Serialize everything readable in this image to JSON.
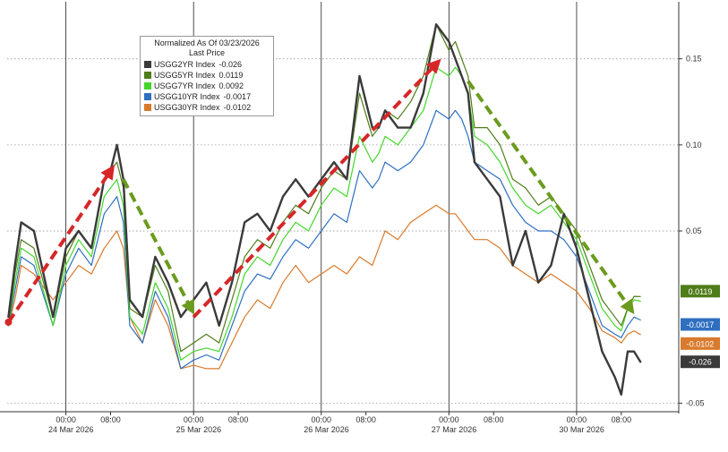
{
  "chart_data": {
    "type": "line",
    "ylim": [
      -0.055,
      0.18
    ],
    "yticks": [
      -0.05,
      0.05,
      0.1,
      0.15
    ],
    "ytick_labels": [
      "-0.05",
      "0.05",
      "0.10",
      "0.15"
    ],
    "time_ticks": [
      {
        "x": 0.1,
        "label": "00:00"
      },
      {
        "x": 0.45,
        "label": "08:00"
      },
      {
        "x": 1.1,
        "label": "00:00"
      },
      {
        "x": 1.45,
        "label": "08:00"
      },
      {
        "x": 2.1,
        "label": "00:00"
      },
      {
        "x": 2.45,
        "label": "08:00"
      },
      {
        "x": 3.1,
        "label": "00:00"
      },
      {
        "x": 3.45,
        "label": "08:00"
      },
      {
        "x": 4.1,
        "label": "00:00"
      },
      {
        "x": 4.45,
        "label": "08:00"
      }
    ],
    "day_labels": [
      {
        "x": 0.14,
        "label": "24 Mar 2026"
      },
      {
        "x": 1.14,
        "label": "25 Mar 2026"
      },
      {
        "x": 2.14,
        "label": "26 Mar 2026"
      },
      {
        "x": 3.14,
        "label": "27 Mar 2026"
      },
      {
        "x": 4.14,
        "label": "30 Mar 2026"
      }
    ],
    "legend": {
      "title": "Normalized As Of 03/23/2026",
      "subtitle": "Last Price"
    },
    "series": [
      {
        "name": "USGG2YR Index",
        "last": "-0.026",
        "color": "#3a3a3a",
        "x": [
          -0.35,
          -0.3,
          -0.25,
          -0.15,
          0.0,
          0.1,
          0.2,
          0.3,
          0.4,
          0.45,
          0.5,
          0.55,
          0.6,
          0.7,
          0.8,
          0.9,
          1.0,
          1.1,
          1.2,
          1.3,
          1.4,
          1.5,
          1.6,
          1.7,
          1.8,
          1.9,
          2.0,
          2.1,
          2.2,
          2.3,
          2.4,
          2.5,
          2.55,
          2.6,
          2.7,
          2.8,
          2.9,
          3.0,
          3.1,
          3.15,
          3.2,
          3.25,
          3.3,
          3.4,
          3.5,
          3.6,
          3.7,
          3.8,
          3.9,
          4.0,
          4.1,
          4.2,
          4.3,
          4.4,
          4.45,
          4.5,
          4.55,
          4.6
        ],
        "y": [
          0.0,
          0.03,
          0.055,
          0.05,
          0.0,
          0.04,
          0.05,
          0.04,
          0.08,
          0.085,
          0.1,
          0.08,
          0.01,
          0.0,
          0.035,
          0.02,
          0.0,
          0.01,
          0.02,
          -0.005,
          0.02,
          0.055,
          0.06,
          0.05,
          0.07,
          0.08,
          0.07,
          0.08,
          0.09,
          0.08,
          0.14,
          0.11,
          0.11,
          0.12,
          0.11,
          0.11,
          0.13,
          0.17,
          0.16,
          0.15,
          0.14,
          0.13,
          0.09,
          0.08,
          0.07,
          0.03,
          0.05,
          0.02,
          0.03,
          0.06,
          0.04,
          0.01,
          -0.02,
          -0.035,
          -0.045,
          -0.02,
          -0.02,
          -0.026
        ]
      },
      {
        "name": "USGG5YR Index",
        "last": "0.0119",
        "color": "#4f7d19",
        "x": [
          -0.35,
          -0.3,
          -0.25,
          -0.15,
          0.0,
          0.1,
          0.2,
          0.3,
          0.4,
          0.45,
          0.5,
          0.55,
          0.6,
          0.7,
          0.8,
          0.9,
          1.0,
          1.1,
          1.2,
          1.3,
          1.4,
          1.5,
          1.6,
          1.7,
          1.8,
          1.9,
          2.0,
          2.1,
          2.2,
          2.3,
          2.4,
          2.5,
          2.55,
          2.6,
          2.7,
          2.8,
          2.9,
          3.0,
          3.1,
          3.15,
          3.2,
          3.25,
          3.3,
          3.4,
          3.5,
          3.6,
          3.7,
          3.8,
          3.9,
          4.0,
          4.1,
          4.2,
          4.3,
          4.4,
          4.45,
          4.5,
          4.55,
          4.6
        ],
        "y": [
          -0.005,
          0.025,
          0.045,
          0.04,
          0.0,
          0.035,
          0.05,
          0.04,
          0.08,
          0.085,
          0.09,
          0.075,
          0.005,
          0.0,
          0.03,
          0.015,
          -0.02,
          -0.015,
          -0.01,
          -0.015,
          0.01,
          0.035,
          0.045,
          0.04,
          0.055,
          0.065,
          0.06,
          0.075,
          0.085,
          0.08,
          0.13,
          0.105,
          0.11,
          0.12,
          0.115,
          0.125,
          0.14,
          0.17,
          0.155,
          0.16,
          0.15,
          0.14,
          0.11,
          0.11,
          0.1,
          0.08,
          0.075,
          0.065,
          0.07,
          0.06,
          0.05,
          0.03,
          0.01,
          0.0,
          -0.005,
          0.005,
          0.012,
          0.0119
        ]
      },
      {
        "name": "USGG7YR Index",
        "last": "0.0092",
        "color": "#44d62c",
        "x": [
          -0.35,
          -0.3,
          -0.25,
          -0.15,
          0.0,
          0.1,
          0.2,
          0.3,
          0.4,
          0.45,
          0.5,
          0.55,
          0.6,
          0.7,
          0.8,
          0.9,
          1.0,
          1.1,
          1.2,
          1.3,
          1.4,
          1.5,
          1.6,
          1.7,
          1.8,
          1.9,
          2.0,
          2.1,
          2.2,
          2.3,
          2.4,
          2.5,
          2.55,
          2.6,
          2.7,
          2.8,
          2.9,
          3.0,
          3.1,
          3.15,
          3.2,
          3.25,
          3.3,
          3.4,
          3.5,
          3.6,
          3.7,
          3.8,
          3.9,
          4.0,
          4.1,
          4.2,
          4.3,
          4.4,
          4.45,
          4.5,
          4.55,
          4.6
        ],
        "y": [
          -0.005,
          0.02,
          0.04,
          0.035,
          -0.005,
          0.03,
          0.045,
          0.035,
          0.07,
          0.075,
          0.08,
          0.065,
          0.0,
          -0.01,
          0.02,
          0.005,
          -0.025,
          -0.02,
          -0.018,
          -0.02,
          0.0,
          0.025,
          0.035,
          0.03,
          0.045,
          0.055,
          0.05,
          0.065,
          0.075,
          0.07,
          0.105,
          0.09,
          0.095,
          0.105,
          0.1,
          0.11,
          0.12,
          0.145,
          0.14,
          0.145,
          0.14,
          0.13,
          0.105,
          0.1,
          0.09,
          0.075,
          0.065,
          0.06,
          0.065,
          0.055,
          0.045,
          0.025,
          0.005,
          -0.005,
          -0.008,
          0.005,
          0.01,
          0.0092
        ]
      },
      {
        "name": "USGG10YR Index",
        "last": "-0.0017",
        "color": "#2e6fc0",
        "x": [
          -0.35,
          -0.3,
          -0.25,
          -0.15,
          0.0,
          0.1,
          0.2,
          0.3,
          0.4,
          0.45,
          0.5,
          0.55,
          0.6,
          0.7,
          0.8,
          0.9,
          1.0,
          1.1,
          1.2,
          1.3,
          1.4,
          1.5,
          1.6,
          1.7,
          1.8,
          1.9,
          2.0,
          2.1,
          2.2,
          2.3,
          2.4,
          2.5,
          2.55,
          2.6,
          2.7,
          2.8,
          2.9,
          3.0,
          3.1,
          3.15,
          3.2,
          3.25,
          3.3,
          3.4,
          3.5,
          3.6,
          3.7,
          3.8,
          3.9,
          4.0,
          4.1,
          4.2,
          4.3,
          4.4,
          4.45,
          4.5,
          4.55,
          4.6
        ],
        "y": [
          -0.005,
          0.015,
          0.035,
          0.03,
          -0.005,
          0.025,
          0.04,
          0.03,
          0.06,
          0.065,
          0.07,
          0.055,
          -0.005,
          -0.015,
          0.015,
          0.0,
          -0.03,
          -0.025,
          -0.022,
          -0.025,
          -0.005,
          0.015,
          0.025,
          0.022,
          0.035,
          0.045,
          0.04,
          0.05,
          0.06,
          0.055,
          0.085,
          0.075,
          0.08,
          0.09,
          0.085,
          0.09,
          0.1,
          0.12,
          0.115,
          0.12,
          0.115,
          0.105,
          0.09,
          0.085,
          0.08,
          0.065,
          0.055,
          0.05,
          0.05,
          0.045,
          0.035,
          0.015,
          -0.005,
          -0.01,
          -0.012,
          -0.005,
          0.0,
          -0.0017
        ]
      },
      {
        "name": "USGG30YR Index",
        "last": "-0.0102",
        "color": "#d97a2c",
        "x": [
          -0.35,
          -0.3,
          -0.25,
          -0.15,
          0.0,
          0.1,
          0.2,
          0.3,
          0.4,
          0.45,
          0.5,
          0.55,
          0.6,
          0.7,
          0.8,
          0.9,
          1.0,
          1.1,
          1.2,
          1.3,
          1.4,
          1.5,
          1.6,
          1.7,
          1.8,
          1.9,
          2.0,
          2.1,
          2.2,
          2.3,
          2.4,
          2.5,
          2.55,
          2.6,
          2.7,
          2.8,
          2.9,
          3.0,
          3.1,
          3.15,
          3.2,
          3.25,
          3.3,
          3.4,
          3.5,
          3.6,
          3.7,
          3.8,
          3.9,
          4.0,
          4.1,
          4.2,
          4.3,
          4.4,
          4.45,
          4.5,
          4.55,
          4.6
        ],
        "y": [
          -0.005,
          0.01,
          0.03,
          0.025,
          0.01,
          0.02,
          0.03,
          0.025,
          0.04,
          0.045,
          0.05,
          0.04,
          0.0,
          -0.015,
          0.01,
          -0.005,
          -0.03,
          -0.028,
          -0.03,
          -0.03,
          -0.015,
          0.0,
          0.01,
          0.005,
          0.02,
          0.03,
          0.02,
          0.025,
          0.03,
          0.025,
          0.035,
          0.03,
          0.04,
          0.05,
          0.045,
          0.055,
          0.06,
          0.065,
          0.06,
          0.06,
          0.055,
          0.05,
          0.045,
          0.045,
          0.04,
          0.03,
          0.025,
          0.02,
          0.025,
          0.02,
          0.015,
          0.005,
          -0.008,
          -0.012,
          -0.015,
          -0.01,
          -0.008,
          -0.0102
        ]
      }
    ],
    "arrows": [
      {
        "color": "#d62728",
        "from": [
          -0.35,
          -0.003
        ],
        "to": [
          0.45,
          0.085
        ]
      },
      {
        "color": "#6b9b1e",
        "from": [
          0.55,
          0.08
        ],
        "to": [
          1.08,
          0.005
        ]
      },
      {
        "color": "#d62728",
        "from": [
          1.1,
          0.0
        ],
        "to": [
          3.0,
          0.147
        ]
      },
      {
        "color": "#6b9b1e",
        "from": [
          3.25,
          0.137
        ],
        "to": [
          4.52,
          0.005
        ]
      }
    ]
  }
}
